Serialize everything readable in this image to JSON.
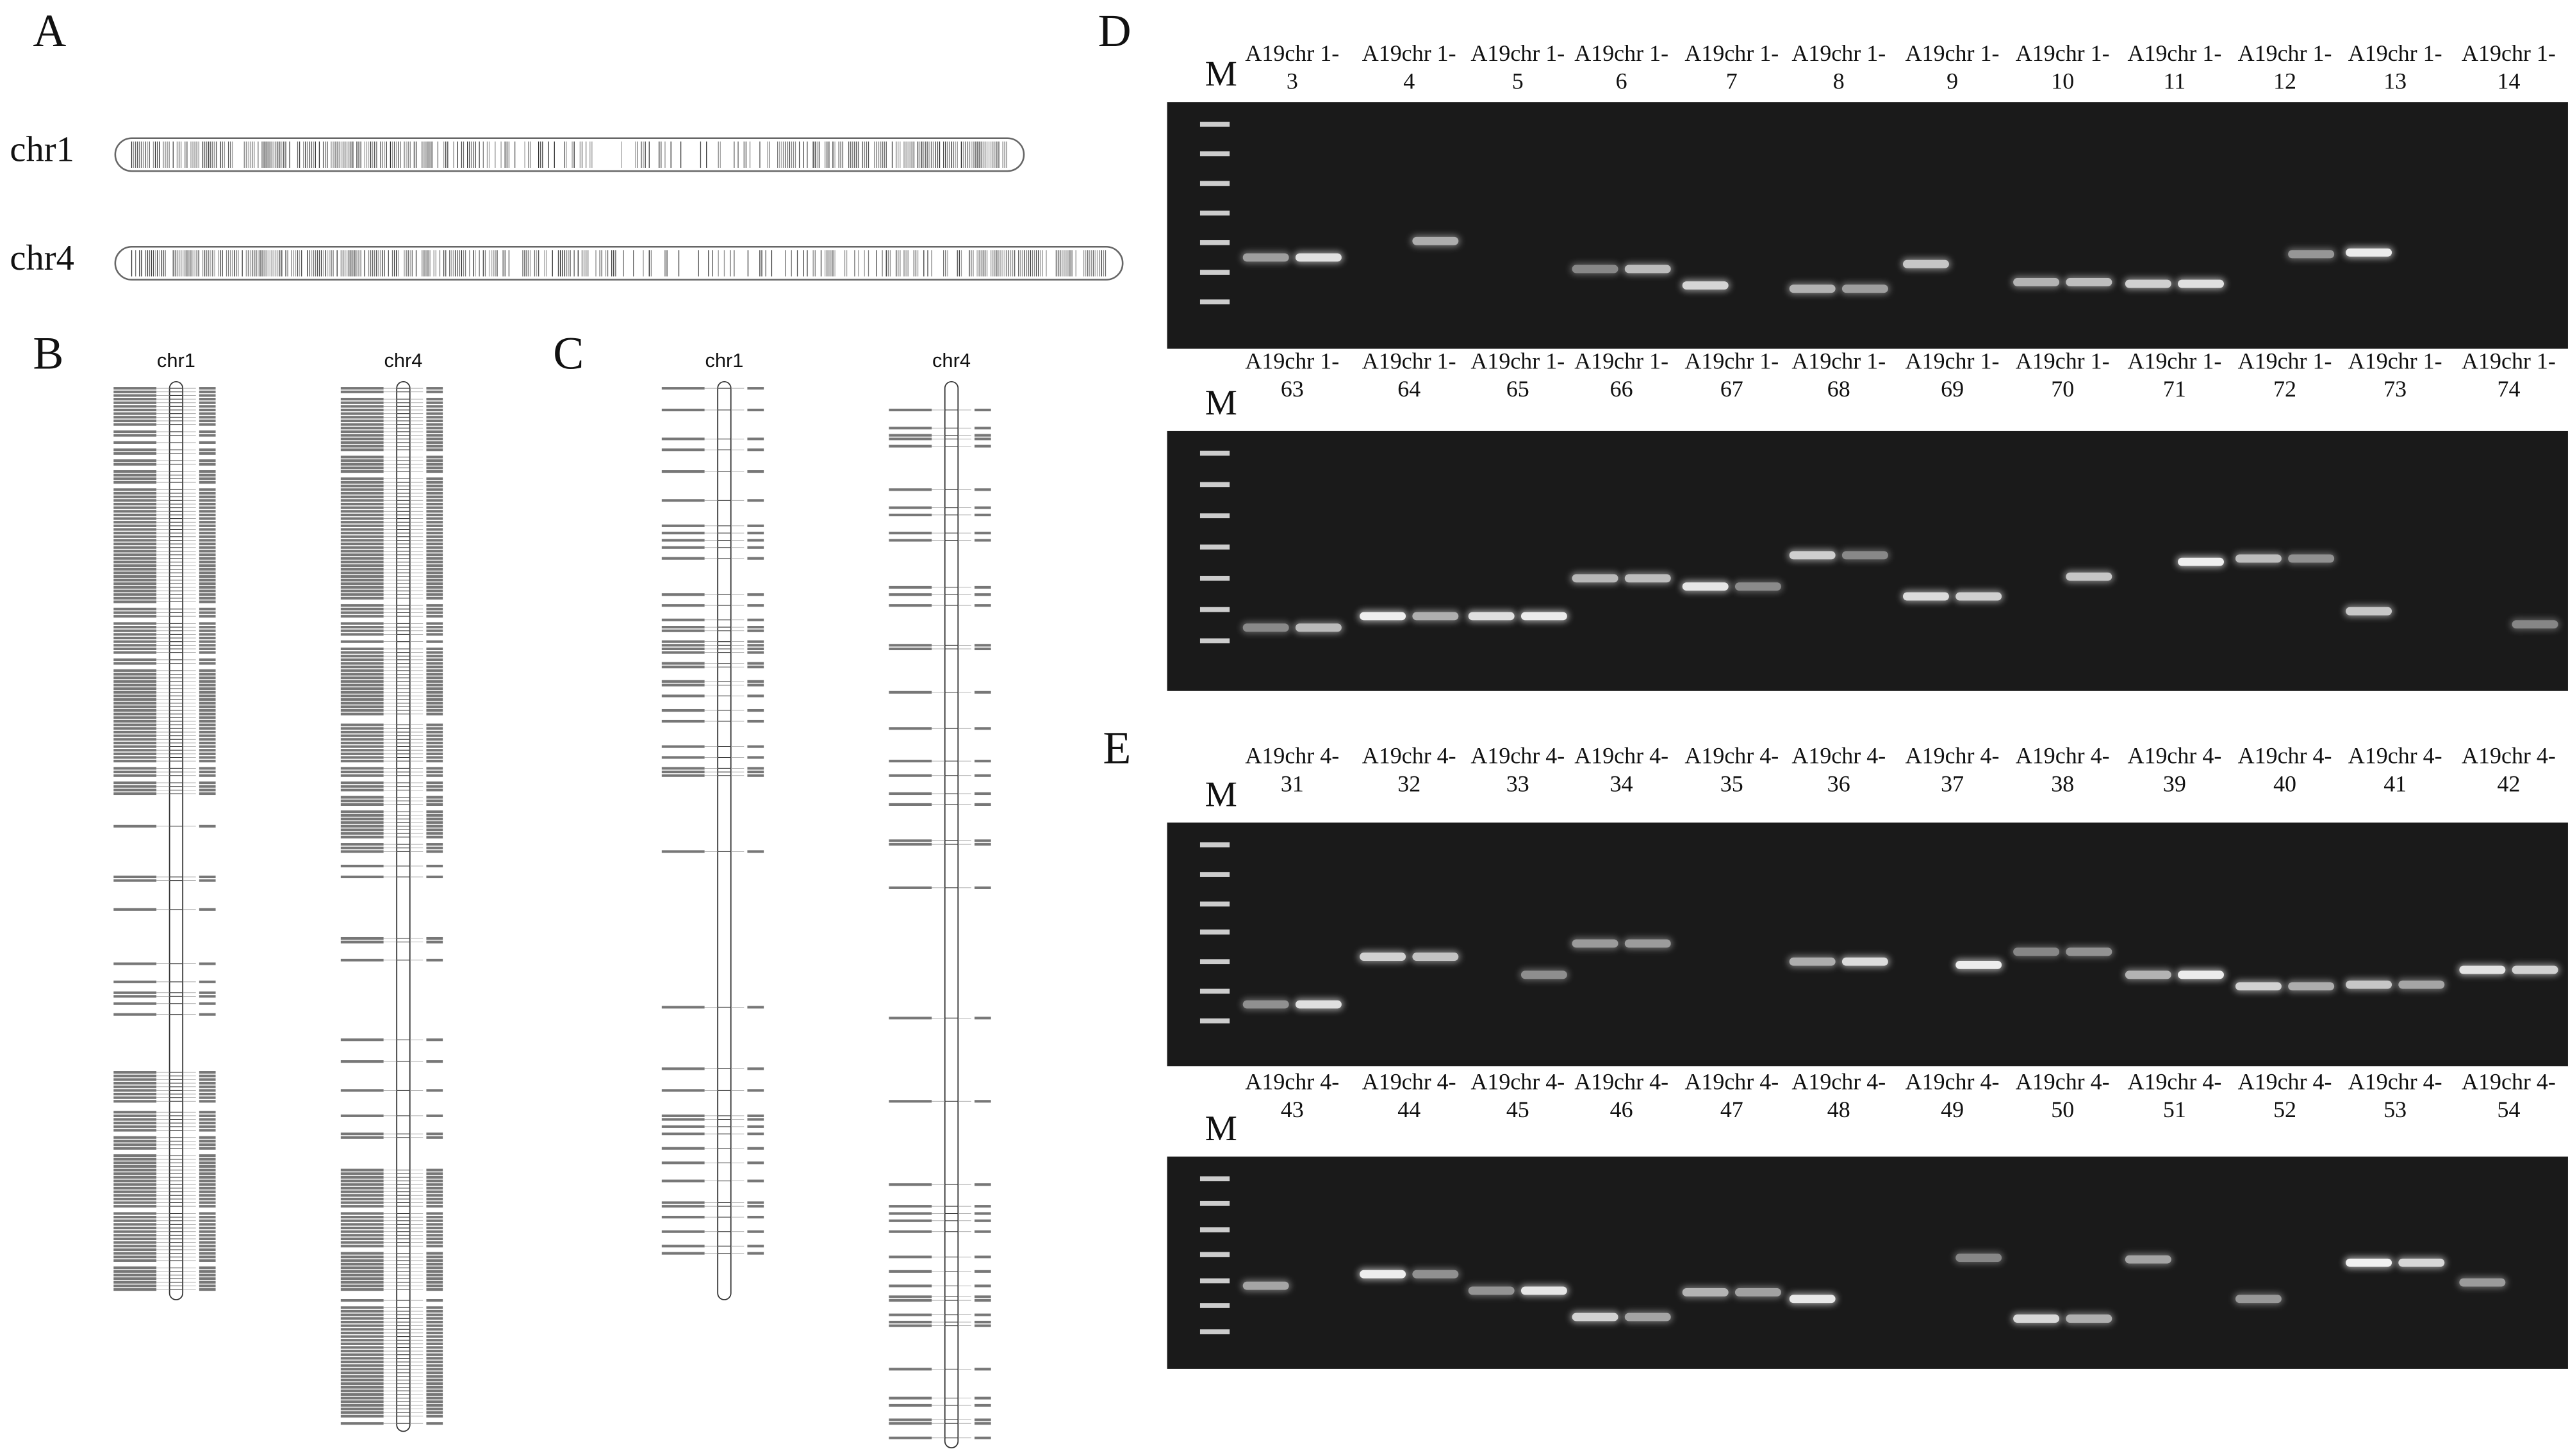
{
  "panel_a": {
    "label": "A",
    "chromosomes": [
      "chr1",
      "chr4"
    ]
  },
  "panel_b": {
    "label": "B",
    "chromosomes": [
      "chr1",
      "chr4"
    ]
  },
  "panel_c": {
    "label": "C",
    "chromosomes": [
      "chr1",
      "chr4"
    ]
  },
  "panel_d": {
    "label": "D",
    "gels": [
      {
        "ladder": "M",
        "lanes": [
          "A19chr 1-3",
          "A19chr 1-4",
          "A19chr 1-5",
          "A19chr 1-6",
          "A19chr 1-7",
          "A19chr 1-8",
          "A19chr 1-9",
          "A19chr 1-10",
          "A19chr 1-11",
          "A19chr 1-12",
          "A19chr 1-13",
          "A19chr 1-14"
        ]
      },
      {
        "ladder": "M",
        "lanes": [
          "A19chr 1-63",
          "A19chr 1-64",
          "A19chr 1-65",
          "A19chr 1-66",
          "A19chr 1-67",
          "A19chr 1-68",
          "A19chr 1-69",
          "A19chr 1-70",
          "A19chr 1-71",
          "A19chr 1-72",
          "A19chr 1-73",
          "A19chr 1-74"
        ]
      }
    ]
  },
  "panel_e": {
    "label": "E",
    "gels": [
      {
        "ladder": "M",
        "lanes": [
          "A19chr 4-31",
          "A19chr 4-32",
          "A19chr 4-33",
          "A19chr 4-34",
          "A19chr 4-35",
          "A19chr 4-36",
          "A19chr 4-37",
          "A19chr 4-38",
          "A19chr 4-39",
          "A19chr 4-40",
          "A19chr 4-41",
          "A19chr 4-42"
        ]
      },
      {
        "ladder": "M",
        "lanes": [
          "A19chr 4-43",
          "A19chr 4-44",
          "A19chr 4-45",
          "A19chr 4-46",
          "A19chr 4-47",
          "A19chr 4-48",
          "A19chr 4-49",
          "A19chr 4-50",
          "A19chr 4-51",
          "A19chr 4-52",
          "A19chr 4-53",
          "A19chr 4-54"
        ]
      }
    ]
  }
}
